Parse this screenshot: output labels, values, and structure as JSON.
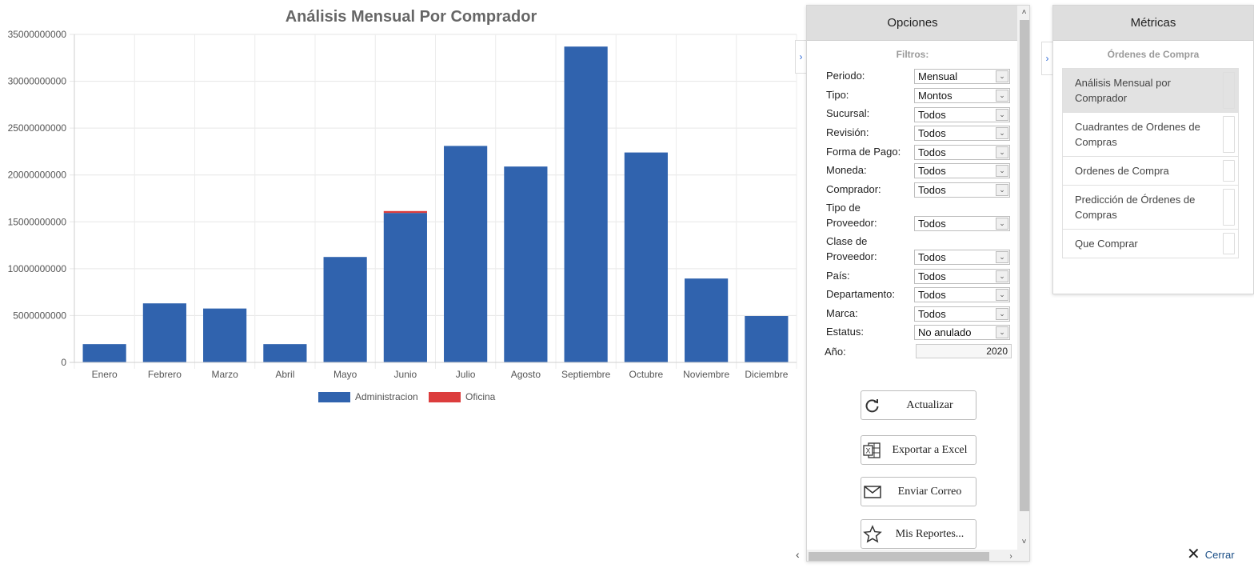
{
  "chart_data": {
    "type": "bar",
    "stacked": true,
    "title": "Análisis Mensual Por Comprador",
    "categories": [
      "Enero",
      "Febrero",
      "Marzo",
      "Abril",
      "Mayo",
      "Junio",
      "Julio",
      "Agosto",
      "Septiembre",
      "Octubre",
      "Noviembre",
      "Diciembre"
    ],
    "series": [
      {
        "name": "Administracion",
        "color": "#3063ae",
        "values": [
          1950000000,
          6300000000,
          5750000000,
          1950000000,
          11250000000,
          15950000000,
          23100000000,
          20900000000,
          33700000000,
          22400000000,
          8950000000,
          4950000000
        ]
      },
      {
        "name": "Oficina",
        "color": "#dc3d3d",
        "values": [
          0,
          0,
          0,
          0,
          0,
          200000000,
          0,
          0,
          0,
          0,
          0,
          0
        ]
      }
    ],
    "yticks": [
      "35000000000",
      "30000000000",
      "25000000000",
      "20000000000",
      "15000000000",
      "10000000000",
      "5000000000",
      "0"
    ],
    "ylim": [
      0,
      35000000000
    ],
    "grid": true,
    "legend_position": "bottom"
  },
  "options": {
    "title": "Opciones",
    "filters_label": "Filtros:",
    "filters": [
      {
        "label": "Periodo:",
        "value": "Mensual"
      },
      {
        "label": "Tipo:",
        "value": "Montos"
      },
      {
        "label": "Sucursal:",
        "value": "Todos"
      },
      {
        "label": "Revisión:",
        "value": "Todos"
      },
      {
        "label": "Forma de Pago:",
        "value": "Todos"
      },
      {
        "label": "Moneda:",
        "value": "Todos"
      },
      {
        "label": "Comprador:",
        "value": "Todos"
      },
      {
        "label": "Tipo de Proveedor:",
        "value": "Todos"
      },
      {
        "label": "Clase de Proveedor:",
        "value": "Todos"
      },
      {
        "label": "País:",
        "value": "Todos"
      },
      {
        "label": "Departamento:",
        "value": "Todos"
      },
      {
        "label": "Marca:",
        "value": "Todos"
      },
      {
        "label": "Estatus:",
        "value": "No anulado"
      }
    ],
    "year_label": "Año:",
    "year_value": "2020",
    "buttons": [
      {
        "label": "Actualizar",
        "icon": "refresh-icon"
      },
      {
        "label": "Exportar a Excel",
        "icon": "excel-icon"
      },
      {
        "label": "Enviar Correo",
        "icon": "mail-icon"
      },
      {
        "label": "Mis Reportes...",
        "icon": "star-icon"
      }
    ]
  },
  "metrics": {
    "title": "Métricas",
    "section_label": "Órdenes de Compra",
    "items": [
      {
        "label": "Análisis Mensual por Comprador",
        "active": true
      },
      {
        "label": "Cuadrantes de Ordenes de Compras",
        "active": false
      },
      {
        "label": "Ordenes de Compra",
        "active": false
      },
      {
        "label": "Predicción de Órdenes de Compras",
        "active": false
      },
      {
        "label": "Que Comprar",
        "active": false
      }
    ]
  },
  "close_label": "Cerrar"
}
